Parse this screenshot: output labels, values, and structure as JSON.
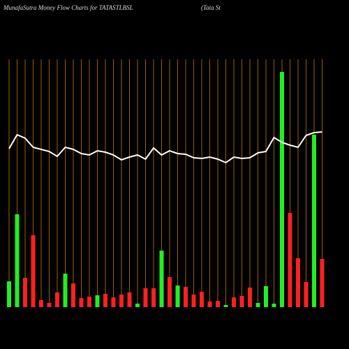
{
  "chart_data": {
    "type": "bar-line",
    "title": "MunafaSutra  Money Flow  Charts for TATASTLBSL",
    "subtitle": "(Tata  St",
    "ylim": [
      0,
      340
    ],
    "grid_color": "#c87800",
    "bars": {
      "values": [
        37,
        133,
        42,
        103,
        10,
        6,
        21,
        48,
        34,
        13,
        15,
        17,
        19,
        14,
        18,
        21,
        5,
        27,
        27,
        81,
        43,
        31,
        29,
        18,
        22,
        8,
        9,
        3,
        14,
        16,
        28,
        6,
        30,
        5,
        337,
        135,
        70,
        36,
        247,
        69
      ],
      "colors": [
        "#22ee22",
        "#22ee22",
        "#ff2020",
        "#ff2020",
        "#ff2020",
        "#ff2020",
        "#ff2020",
        "#22ee22",
        "#ff2020",
        "#ff2020",
        "#ff2020",
        "#22ee22",
        "#ff2020",
        "#ff2020",
        "#ff2020",
        "#ff2020",
        "#22ee22",
        "#ff2020",
        "#ff2020",
        "#22ee22",
        "#ff2020",
        "#22ee22",
        "#ff2020",
        "#ff2020",
        "#ff2020",
        "#ff2020",
        "#ff2020",
        "#22ee22",
        "#ff2020",
        "#ff2020",
        "#ff2020",
        "#22ee22",
        "#22ee22",
        "#22ee22",
        "#22ee22",
        "#ff2020",
        "#ff2020",
        "#ff2020",
        "#22ee22",
        "#ff2020"
      ]
    },
    "line": {
      "color": "#ffffff",
      "values": [
        227,
        247,
        242,
        229,
        226,
        223,
        216,
        229,
        226,
        220,
        218,
        224,
        222,
        218,
        211,
        215,
        218,
        212,
        228,
        218,
        224,
        220,
        219,
        214,
        213,
        215,
        212,
        207,
        215,
        213,
        214,
        221,
        223,
        243,
        236,
        232,
        229,
        246,
        250,
        251
      ]
    }
  }
}
